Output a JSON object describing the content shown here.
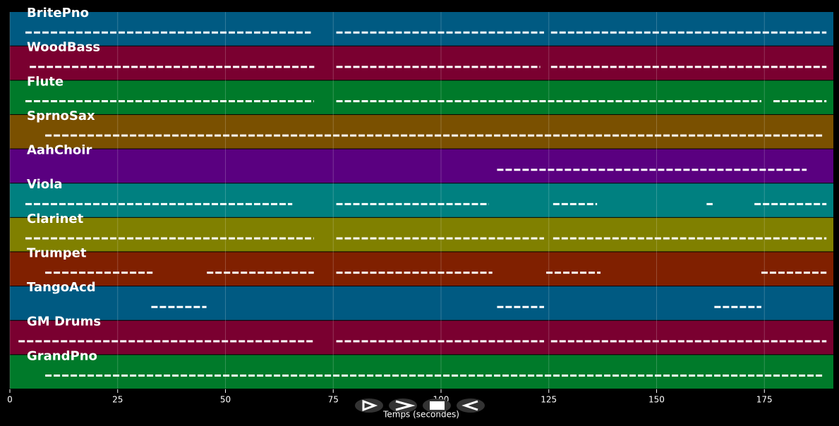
{
  "chart_data": {
    "type": "pianoroll",
    "xlabel": "Temps (secondes)",
    "xlim": [
      0,
      191
    ],
    "xticks": [
      0,
      25,
      50,
      75,
      100,
      125,
      150,
      175
    ],
    "grid": true,
    "tracks": [
      {
        "name": "BritePno",
        "color": "#005a82",
        "segments": [
          [
            3.6,
            69.8
          ],
          [
            75.7,
            123.9
          ],
          [
            125.5,
            189.4
          ]
        ]
      },
      {
        "name": "WoodBass",
        "color": "#7a0030",
        "segments": [
          [
            4.6,
            70.6
          ],
          [
            75.7,
            123
          ],
          [
            125.5,
            189.4
          ]
        ]
      },
      {
        "name": "Flute",
        "color": "#007a2a",
        "segments": [
          [
            3.6,
            70.5
          ],
          [
            75.7,
            174.3
          ],
          [
            177.1,
            189.4
          ]
        ]
      },
      {
        "name": "SprnoSax",
        "color": "#7a5000",
        "segments": [
          [
            8.2,
            188.6
          ]
        ]
      },
      {
        "name": "AahChoir",
        "color": "#5a0080",
        "segments": [
          [
            113,
            184.8
          ]
        ]
      },
      {
        "name": "Viola",
        "color": "#008080",
        "segments": [
          [
            3.6,
            65.5
          ],
          [
            75.7,
            111.1
          ],
          [
            126,
            136.2
          ],
          [
            161.6,
            163
          ],
          [
            172.7,
            189.4
          ]
        ]
      },
      {
        "name": "Clarinet",
        "color": "#808000",
        "segments": [
          [
            3.6,
            70.5
          ],
          [
            75.7,
            123.9
          ],
          [
            126,
            189.4
          ]
        ]
      },
      {
        "name": "Trumpet",
        "color": "#802000",
        "segments": [
          [
            8.2,
            33.1
          ],
          [
            45.7,
            70.5
          ],
          [
            75.7,
            111.9
          ],
          [
            124.4,
            137
          ],
          [
            174.3,
            189.4
          ]
        ]
      },
      {
        "name": "TangoAcd",
        "color": "#005a82",
        "segments": [
          [
            32.8,
            45.6
          ],
          [
            113,
            123.9
          ],
          [
            163.4,
            174.3
          ]
        ]
      },
      {
        "name": "GM Drums",
        "color": "#7a0030",
        "segments": [
          [
            2,
            70.5
          ],
          [
            75.7,
            123.9
          ],
          [
            125.5,
            189.4
          ]
        ]
      },
      {
        "name": "GrandPno",
        "color": "#007a2a",
        "segments": [
          [
            8.2,
            188.6
          ]
        ]
      }
    ]
  }
}
